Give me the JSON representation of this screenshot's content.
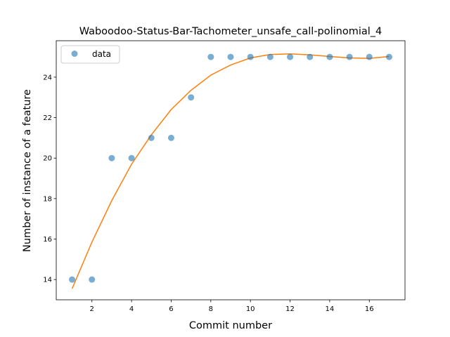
{
  "chart_data": {
    "type": "scatter",
    "title": "Waboodoo-Status-Bar-Tachometer_unsafe_call-polinomial_4",
    "xlabel": "Commit number",
    "ylabel": "Number of instance of a feature",
    "xlim": [
      0.2,
      17.8
    ],
    "ylim": [
      13.0,
      25.8
    ],
    "xticks": [
      2,
      4,
      6,
      8,
      10,
      12,
      14,
      16
    ],
    "yticks": [
      14,
      16,
      18,
      20,
      22,
      24
    ],
    "legend": {
      "position": "top-left",
      "entries": [
        "data"
      ]
    },
    "grid": false,
    "series": [
      {
        "name": "data",
        "kind": "scatter",
        "color": "#1f77b4",
        "x": [
          1,
          2,
          3,
          4,
          5,
          6,
          7,
          8,
          9,
          10,
          11,
          12,
          13,
          14,
          15,
          16,
          17
        ],
        "y": [
          14,
          14,
          20,
          20,
          21,
          21,
          23,
          25,
          25,
          25,
          25,
          25,
          25,
          25,
          25,
          25,
          25
        ]
      },
      {
        "kind": "line",
        "color": "#ff7f0e",
        "x": [
          1,
          2,
          3,
          4,
          5,
          6,
          7,
          8,
          9,
          10,
          11,
          12,
          13,
          14,
          15,
          16,
          17
        ],
        "y": [
          13.55,
          15.85,
          17.9,
          19.7,
          21.15,
          22.4,
          23.35,
          24.1,
          24.6,
          24.95,
          25.12,
          25.15,
          25.1,
          25.02,
          24.95,
          24.93,
          25.02
        ]
      }
    ]
  }
}
